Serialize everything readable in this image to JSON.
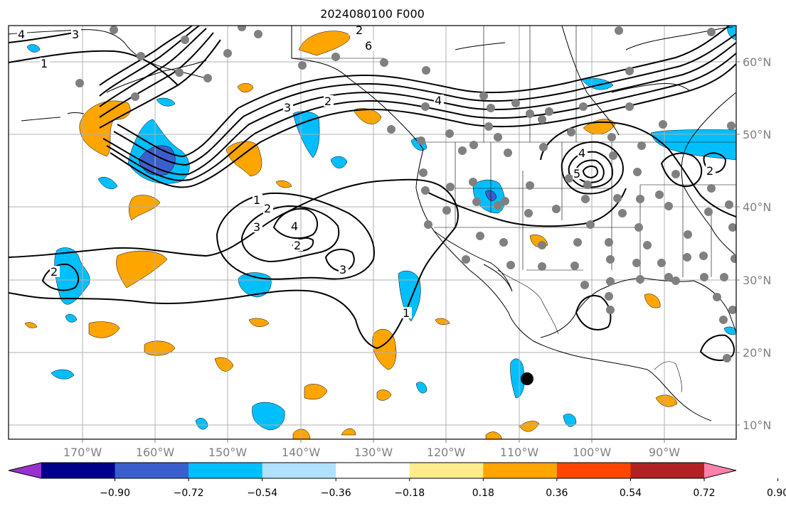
{
  "title": "2024080100 F000",
  "map": {
    "lat_labels": [
      "60°N",
      "50°N",
      "40°N",
      "30°N",
      "20°N",
      "10°N"
    ],
    "lon_labels": [
      "170°W",
      "160°W",
      "150°W",
      "140°W",
      "130°W",
      "120°W",
      "110°W",
      "100°W",
      "90°W"
    ],
    "contour_labels": [
      "4",
      "3",
      "1",
      "6",
      "3",
      "2",
      "4",
      "1",
      "2",
      "2",
      "3",
      "4",
      "2",
      "3",
      "2",
      "1",
      "4",
      "5",
      "2"
    ],
    "station_marker": "black-dot"
  },
  "colorbar": {
    "ticks": [
      "−0.90",
      "−0.72",
      "−0.54",
      "−0.36",
      "−0.18",
      "0.18",
      "0.36",
      "0.54",
      "0.72",
      "0.90"
    ],
    "colors": [
      "#9932CC",
      "#00008B",
      "#3A5FCD",
      "#00BFFF",
      "#B0E2FF",
      "#FFFFFF",
      "#FFEC8B",
      "#FFA500",
      "#FF4500",
      "#B22222",
      "#FF82AB"
    ]
  },
  "colors": {
    "frame": "#000000",
    "grid": "#b0b0b0",
    "tick_labels": "#808080",
    "station_dots": "#808080"
  }
}
